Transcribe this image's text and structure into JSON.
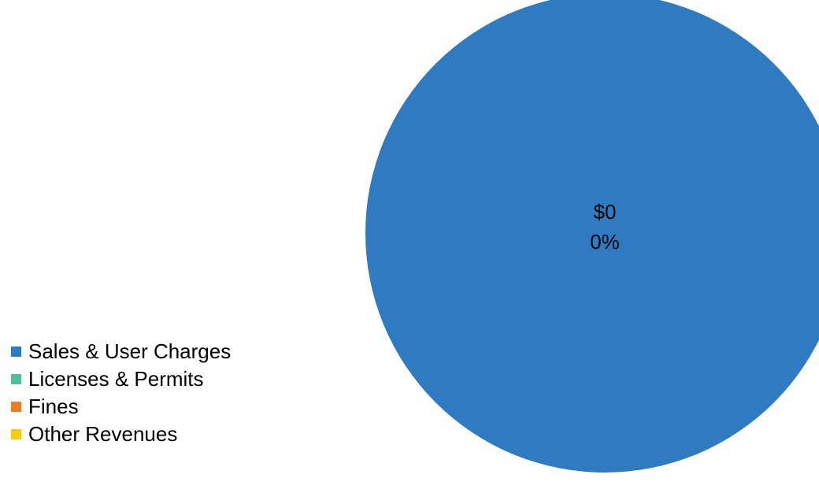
{
  "chart_data": {
    "type": "pie",
    "title": "",
    "legend_position": "left-bottom",
    "slices": [
      {
        "name": "Sales & User Charges",
        "value": 0,
        "percent_label": "0%",
        "value_label": "$0",
        "color": "#2E7BC1"
      },
      {
        "name": "Licenses & Permits",
        "value": 0,
        "percent_label": "",
        "value_label": "",
        "color": "#4CBF9F"
      },
      {
        "name": "Fines",
        "value": 0,
        "percent_label": "",
        "value_label": "",
        "color": "#E87D2A"
      },
      {
        "name": "Other Revenues",
        "value": 0,
        "percent_label": "",
        "value_label": "",
        "color": "#FFC90E"
      }
    ],
    "data_label": {
      "value": "$0",
      "percent": "0%"
    }
  }
}
